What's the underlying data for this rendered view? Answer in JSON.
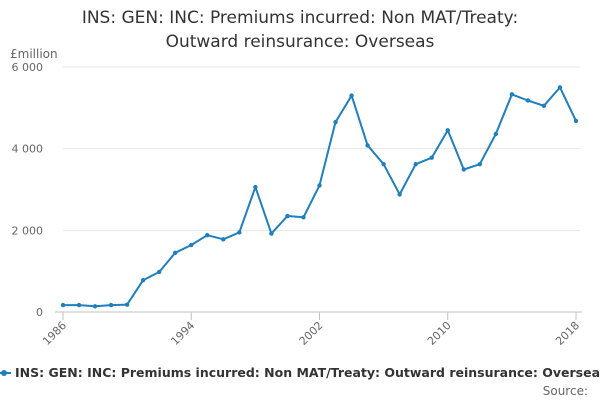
{
  "chart_data": {
    "type": "line",
    "title_lines": [
      "INS: GEN: INC: Premiums incurred: Non MAT/Treaty:",
      "Outward reinsurance: Overseas"
    ],
    "ylabel": "£million",
    "xlabel": "",
    "ylim": [
      0,
      6000
    ],
    "yticks": [
      0,
      2000,
      4000,
      6000
    ],
    "ytick_labels": [
      "0",
      "2 000",
      "4 000",
      "6 000"
    ],
    "xlim": [
      1986,
      2018
    ],
    "xticks": [
      1986,
      1994,
      2002,
      2010,
      2018
    ],
    "xtick_labels": [
      "1986",
      "1994",
      "2002",
      "2010",
      "2018"
    ],
    "grid": "horizontal",
    "legend": "bottom",
    "series": [
      {
        "name": "INS: GEN: INC: Premiums incurred: Non MAT/Treaty: Outward reinsurance: Overseas",
        "color": "#1f7fbf",
        "x": [
          1986,
          1987,
          1988,
          1989,
          1990,
          1991,
          1992,
          1993,
          1994,
          1995,
          1996,
          1997,
          1998,
          1999,
          2000,
          2001,
          2002,
          2003,
          2004,
          2005,
          2006,
          2007,
          2008,
          2009,
          2010,
          2011,
          2012,
          2013,
          2014,
          2015,
          2016,
          2017,
          2018
        ],
        "values": [
          170,
          170,
          140,
          170,
          180,
          780,
          980,
          1450,
          1640,
          1880,
          1780,
          1950,
          3060,
          1920,
          2350,
          2320,
          3100,
          4650,
          5300,
          4080,
          3620,
          2880,
          3620,
          3780,
          4450,
          3490,
          3620,
          4360,
          5330,
          5180,
          5050,
          5500,
          4680
        ]
      }
    ]
  },
  "source_label": "Source:"
}
